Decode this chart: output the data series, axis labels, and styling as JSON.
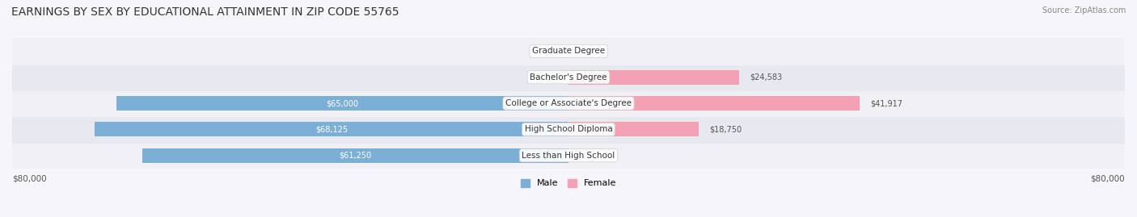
{
  "title": "EARNINGS BY SEX BY EDUCATIONAL ATTAINMENT IN ZIP CODE 55765",
  "source": "Source: ZipAtlas.com",
  "categories": [
    "Less than High School",
    "High School Diploma",
    "College or Associate's Degree",
    "Bachelor's Degree",
    "Graduate Degree"
  ],
  "male_values": [
    61250,
    68125,
    65000,
    0,
    0
  ],
  "female_values": [
    0,
    18750,
    41917,
    24583,
    0
  ],
  "male_color": "#7bafd4",
  "female_color": "#f4a0b5",
  "male_label_color": "#ffffff",
  "female_label_color": "#555555",
  "male_legend_color": "#7bafd4",
  "female_legend_color": "#f4a0b5",
  "bar_bg_color": "#e8e8f0",
  "row_bg_colors": [
    "#f0f0f5",
    "#e8e8f0"
  ],
  "max_value": 80000,
  "xlabel_left": "$80,000",
  "xlabel_right": "$80,000",
  "title_fontsize": 10,
  "source_fontsize": 7,
  "bar_height": 0.55,
  "background_color": "#f5f5fa"
}
